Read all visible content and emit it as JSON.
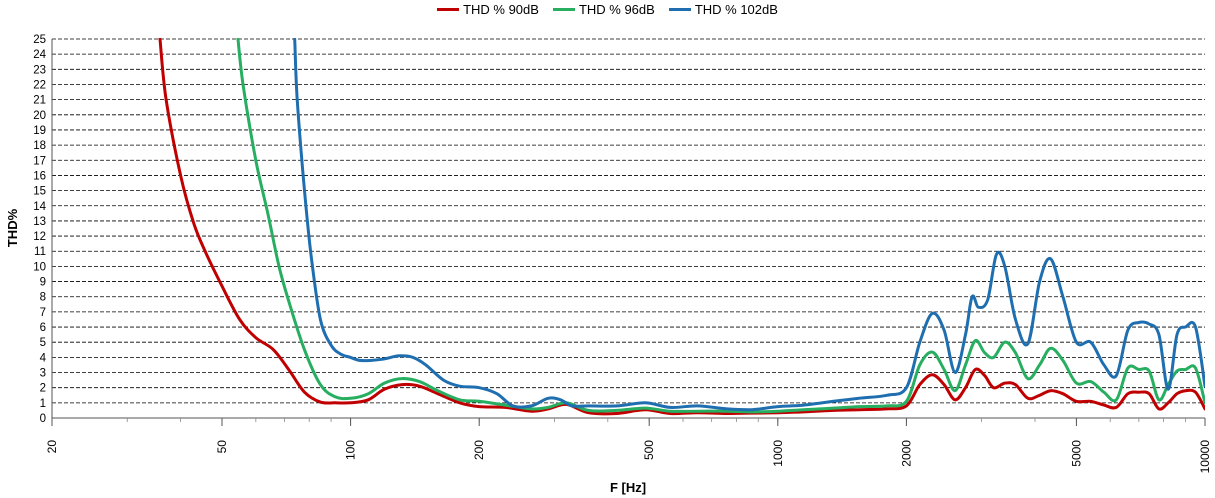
{
  "chart_data": {
    "type": "line",
    "xlabel": "F [Hz]",
    "ylabel": "THD%",
    "xscale": "log",
    "xlim": [
      20,
      10000
    ],
    "ylim": [
      0,
      25
    ],
    "grid": "horizontal dashed",
    "legend_position": "top-center",
    "xticks": [
      20,
      50,
      100,
      200,
      500,
      1000,
      2000,
      5000,
      10000
    ],
    "xtick_labels": [
      "20",
      "50",
      "100",
      "200",
      "500",
      "1000",
      "2000",
      "5000",
      "10000"
    ],
    "yticks": [
      0,
      1,
      2,
      3,
      4,
      5,
      6,
      7,
      8,
      9,
      10,
      11,
      12,
      13,
      14,
      15,
      16,
      17,
      18,
      19,
      20,
      21,
      22,
      23,
      24,
      25
    ],
    "series": [
      {
        "name": "THD % 90dB",
        "color": "#C00000",
        "x": [
          35.8,
          37,
          40,
          43,
          46,
          50,
          55,
          60,
          66,
          72,
          78,
          85,
          92,
          100,
          110,
          120,
          132,
          145,
          160,
          180,
          200,
          230,
          265,
          290,
          320,
          360,
          420,
          490,
          560,
          650,
          760,
          870,
          1000,
          1150,
          1350,
          1550,
          1800,
          2000,
          2150,
          2300,
          2450,
          2600,
          2750,
          2900,
          3050,
          3200,
          3400,
          3600,
          3850,
          4100,
          4350,
          4650,
          5000,
          5400,
          5800,
          6200,
          6600,
          7000,
          7400,
          7800,
          8200,
          8600,
          9000,
          9500,
          10000
        ],
        "y": [
          25,
          21,
          16,
          12.8,
          10.8,
          8.7,
          6.5,
          5.3,
          4.5,
          3.1,
          1.7,
          1.05,
          1.0,
          1.0,
          1.2,
          1.9,
          2.2,
          2.1,
          1.6,
          1.0,
          0.75,
          0.7,
          0.45,
          0.6,
          0.9,
          0.35,
          0.3,
          0.55,
          0.3,
          0.35,
          0.3,
          0.32,
          0.35,
          0.4,
          0.5,
          0.55,
          0.6,
          0.8,
          2.2,
          2.85,
          2.2,
          1.2,
          2.0,
          3.2,
          2.8,
          2.0,
          2.3,
          2.2,
          1.3,
          1.5,
          1.8,
          1.6,
          1.1,
          1.1,
          0.85,
          0.7,
          1.6,
          1.7,
          1.6,
          0.6,
          1.0,
          1.6,
          1.8,
          1.7,
          0.6
        ]
      },
      {
        "name": "THD % 96dB",
        "color": "#27AE60",
        "x": [
          54.5,
          56,
          60,
          64,
          68,
          72,
          78,
          85,
          92,
          100,
          110,
          120,
          132,
          145,
          160,
          180,
          200,
          230,
          265,
          290,
          320,
          360,
          420,
          490,
          560,
          650,
          760,
          870,
          1000,
          1150,
          1350,
          1550,
          1800,
          2000,
          2150,
          2300,
          2450,
          2600,
          2750,
          2900,
          3050,
          3200,
          3400,
          3600,
          3850,
          4100,
          4350,
          4650,
          5000,
          5400,
          5800,
          6200,
          6600,
          7000,
          7400,
          7800,
          8200,
          8600,
          9000,
          9500,
          10000
        ],
        "y": [
          25,
          22,
          17,
          13.5,
          10,
          7.5,
          4.5,
          2.2,
          1.4,
          1.3,
          1.6,
          2.3,
          2.6,
          2.4,
          1.8,
          1.2,
          1.1,
          0.85,
          0.6,
          0.7,
          1.0,
          0.5,
          0.5,
          0.65,
          0.45,
          0.45,
          0.45,
          0.4,
          0.45,
          0.55,
          0.65,
          0.75,
          0.8,
          1.1,
          3.5,
          4.35,
          3.2,
          1.8,
          3.5,
          5.1,
          4.3,
          4.0,
          5.0,
          4.3,
          2.6,
          3.5,
          4.6,
          3.8,
          2.3,
          2.4,
          1.7,
          1.2,
          3.3,
          3.2,
          3.1,
          1.2,
          2.2,
          3.1,
          3.2,
          3.3,
          1.0
        ]
      },
      {
        "name": "THD % 102dB",
        "color": "#1F6FB0",
        "x": [
          74,
          75,
          78,
          81,
          85,
          90,
          95,
          100,
          105,
          112,
          120,
          130,
          140,
          150,
          165,
          180,
          200,
          220,
          240,
          265,
          290,
          310,
          330,
          360,
          420,
          490,
          560,
          650,
          760,
          870,
          1000,
          1150,
          1350,
          1550,
          1800,
          2000,
          2150,
          2300,
          2450,
          2600,
          2750,
          2850,
          2950,
          3100,
          3250,
          3400,
          3600,
          3850,
          4100,
          4350,
          4650,
          5000,
          5400,
          5800,
          6200,
          6600,
          7000,
          7400,
          7800,
          8200,
          8600,
          9000,
          9500,
          10000
        ],
        "y": [
          25,
          21,
          15,
          10.5,
          6.5,
          4.8,
          4.2,
          4.0,
          3.8,
          3.8,
          3.9,
          4.1,
          4.0,
          3.5,
          2.5,
          2.1,
          2.0,
          1.6,
          0.8,
          0.8,
          1.3,
          1.2,
          0.8,
          0.8,
          0.8,
          1.0,
          0.7,
          0.8,
          0.6,
          0.55,
          0.75,
          0.85,
          1.1,
          1.3,
          1.5,
          2.0,
          5.0,
          6.9,
          5.8,
          3.0,
          5.5,
          8.0,
          7.3,
          7.8,
          10.8,
          10.0,
          6.5,
          4.9,
          9.0,
          10.5,
          8.0,
          5.0,
          5.0,
          3.5,
          2.8,
          5.8,
          6.3,
          6.2,
          5.5,
          1.9,
          5.5,
          6.0,
          6.0,
          2.1
        ]
      }
    ]
  }
}
